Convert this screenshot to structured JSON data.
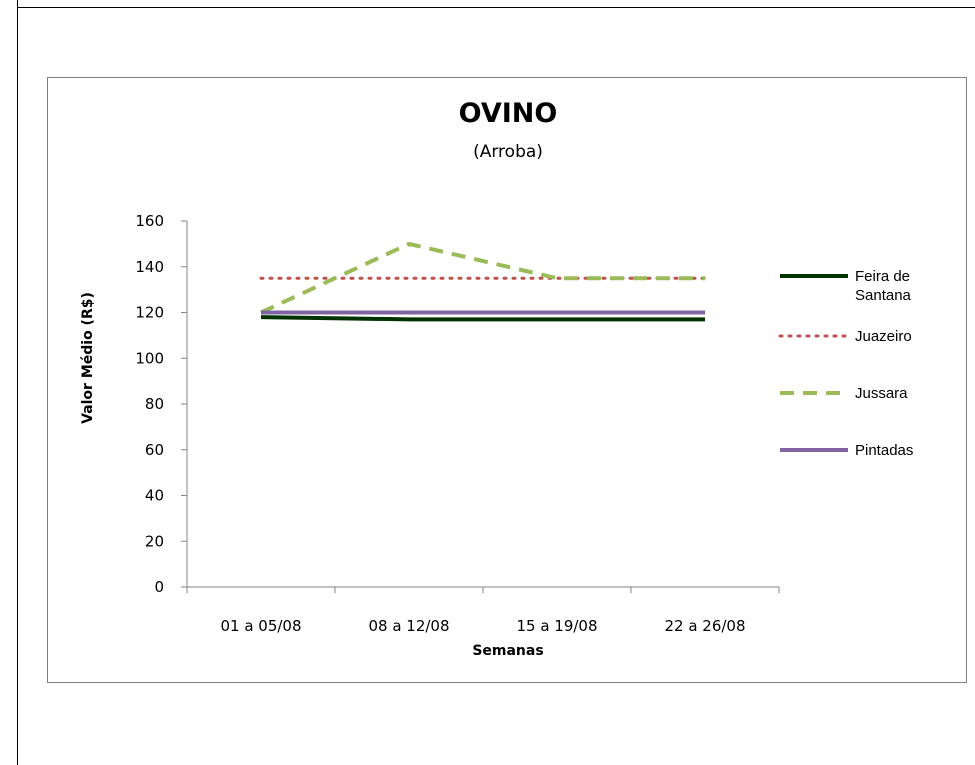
{
  "chart_data": {
    "type": "line",
    "title": "OVINO",
    "subtitle": "(Arroba)",
    "xlabel": "Semanas",
    "ylabel": "Valor Médio (R$)",
    "categories": [
      "01 a 05/08",
      "08 a 12/08",
      "15 a 19/08",
      "22 a 26/08"
    ],
    "ylim": [
      0,
      160
    ],
    "yticks": [
      0,
      20,
      40,
      60,
      80,
      100,
      120,
      140,
      160
    ],
    "grid": false,
    "legend_position": "right",
    "series": [
      {
        "name": "Feira de Santana",
        "values": [
          118,
          117,
          117,
          117
        ],
        "color": "#003300",
        "dash": "solid",
        "width": 4
      },
      {
        "name": "Juazeiro",
        "values": [
          135,
          135,
          135,
          135
        ],
        "color": "#c0504d",
        "dash": "dot",
        "width": 3
      },
      {
        "name": "Jussara",
        "values": [
          120,
          150,
          135,
          135
        ],
        "color": "#9bbb59",
        "dash": "dash",
        "width": 4
      },
      {
        "name": "Pintadas",
        "values": [
          120,
          120,
          120,
          120
        ],
        "color": "#8064a2",
        "dash": "solid",
        "width": 4
      }
    ]
  }
}
